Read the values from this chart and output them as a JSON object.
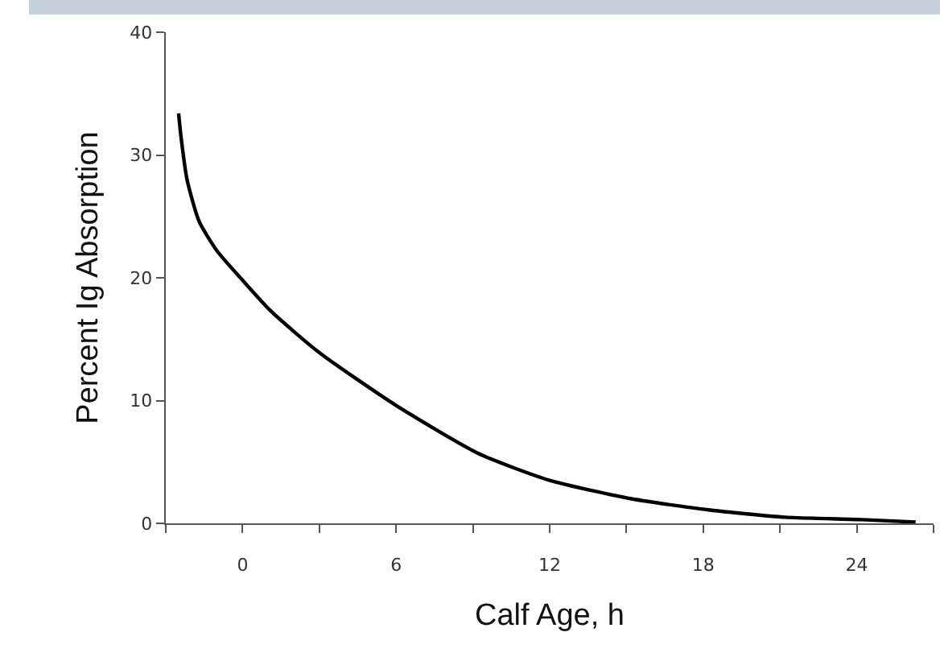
{
  "chart_data": {
    "type": "line",
    "xlabel": "Calf Age, h",
    "ylabel": "Percent Ig Absorption",
    "x": [
      -2.5,
      -2.4,
      -2.17,
      -1.7,
      -1,
      0,
      1.1,
      3,
      6,
      9.2,
      12,
      15.2,
      18.2,
      21.2,
      24.2,
      26.3
    ],
    "series": [
      {
        "color": "#000000",
        "values": [
          33.4,
          31.4,
          28,
          24.6,
          22.2,
          19.8,
          17.3,
          13.9,
          9.6,
          5.7,
          3.5,
          2,
          1.1,
          0.5,
          0.3,
          0.1
        ]
      }
    ],
    "xlim": [
      -3,
      27
    ],
    "xticks": [
      {
        "value": -3,
        "label": null
      },
      0,
      {
        "value": 3,
        "label": null
      },
      6,
      {
        "value": 9,
        "label": null
      },
      12,
      {
        "value": 15,
        "label": null
      },
      18,
      {
        "value": 21,
        "label": null
      },
      24,
      {
        "value": 27,
        "label": null
      }
    ],
    "ylim": [
      0,
      40
    ],
    "yticks": [
      0,
      10,
      20,
      30,
      40
    ],
    "grid": false,
    "marker": "none",
    "line_style": "solid"
  }
}
